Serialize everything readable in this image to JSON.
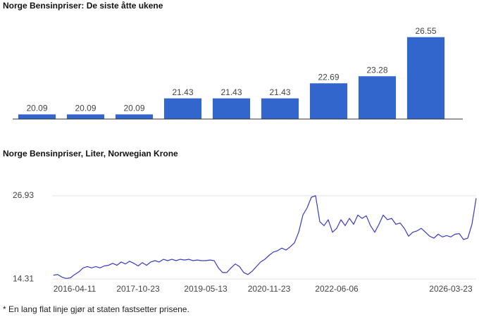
{
  "chart_data": [
    {
      "type": "bar",
      "title": "Norge Bensinpriser: De siste åtte ukene",
      "categories": [
        null,
        null,
        null,
        null,
        null,
        null,
        null,
        null,
        null
      ],
      "values": [
        20.09,
        20.09,
        20.09,
        21.43,
        21.43,
        21.43,
        22.69,
        23.28,
        26.55
      ],
      "color": "#3366cc",
      "ylim": [
        19.7,
        27.3
      ]
    },
    {
      "type": "line",
      "title": "Norge Bensinpriser, Liter, Norwegian Krone",
      "categories": [
        null,
        null,
        null,
        null,
        null,
        "2016-04-11",
        null,
        null,
        null,
        null,
        null,
        null,
        null,
        null,
        null,
        null,
        null,
        null,
        null,
        null,
        "2017-10-23",
        null,
        null,
        null,
        null,
        null,
        null,
        null,
        null,
        null,
        null,
        null,
        null,
        null,
        null,
        null,
        "2019-05-13",
        null,
        null,
        null,
        null,
        null,
        null,
        null,
        null,
        null,
        null,
        null,
        null,
        null,
        null,
        "2020-11-23",
        null,
        null,
        null,
        null,
        null,
        null,
        null,
        null,
        null,
        null,
        null,
        null,
        null,
        null,
        null,
        "2022-06-06",
        null,
        null,
        null,
        null,
        null,
        null,
        null,
        null,
        null,
        null,
        null,
        null,
        null,
        null,
        null,
        null,
        null,
        null,
        null,
        null,
        null,
        null,
        null,
        null,
        null,
        null,
        "2026-03-23",
        null,
        null,
        null,
        null,
        null,
        null
      ],
      "values": [
        14.9,
        15.0,
        14.6,
        14.4,
        14.5,
        15.0,
        15.4,
        16.0,
        16.2,
        16.0,
        16.2,
        16.0,
        16.3,
        16.4,
        16.7,
        16.4,
        16.9,
        16.6,
        17.0,
        16.7,
        16.3,
        16.8,
        16.4,
        16.9,
        17.1,
        16.9,
        17.3,
        17.1,
        17.3,
        17.1,
        17.3,
        17.2,
        17.3,
        17.1,
        17.2,
        17.1,
        17.1,
        17.2,
        17.1,
        16.0,
        15.3,
        15.3,
        16.0,
        16.6,
        16.2,
        15.3,
        15.0,
        15.5,
        16.2,
        16.9,
        17.3,
        17.9,
        18.4,
        18.6,
        19.0,
        18.7,
        19.2,
        19.8,
        21.4,
        24.0,
        25.1,
        26.7,
        26.93,
        23.0,
        22.4,
        23.3,
        21.4,
        22.0,
        23.3,
        22.4,
        23.5,
        22.6,
        24.0,
        23.5,
        23.9,
        22.4,
        21.4,
        22.6,
        24.0,
        23.3,
        23.5,
        22.6,
        22.8,
        22.0,
        20.8,
        21.4,
        21.6,
        22.0,
        21.4,
        20.8,
        20.5,
        21.1,
        20.7,
        20.9,
        20.7,
        21.1,
        21.2,
        20.3,
        20.5,
        22.6,
        26.55
      ],
      "color": "#3a3ac4",
      "ylim": [
        13.9,
        28.3
      ],
      "yticks": [
        14.31,
        26.93
      ],
      "grid": true
    }
  ],
  "footnote": "* En lang flat linje gjør at staten fastsetter prisene."
}
